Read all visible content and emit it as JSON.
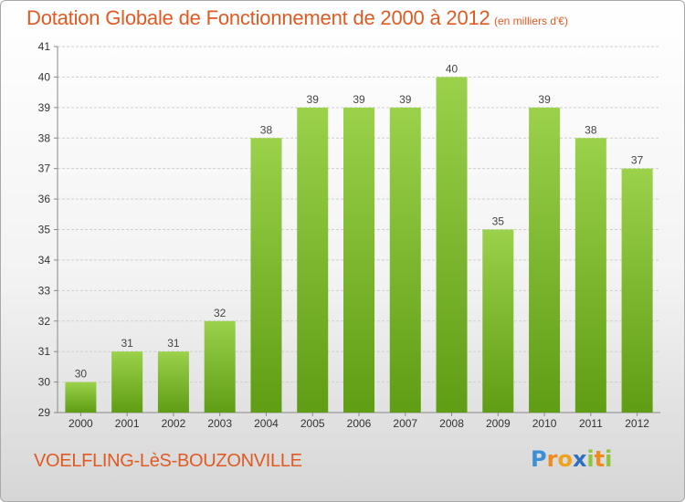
{
  "title": "Dotation Globale de Fonctionnement de 2000 à 2012",
  "unit_note": "(en milliers d'€)",
  "commune": "VOELFLING-LèS-BOUZONVILLE",
  "logo": {
    "p": "P",
    "r": "r",
    "o": "o",
    "x": "x",
    "i1": "i",
    "t": "t",
    "i2": "i"
  },
  "colors": {
    "title": "#e05a22",
    "bar_top": "#9bd14b",
    "bar_bottom": "#5f9d14",
    "grid": "#cfcfcf"
  },
  "chart_data": {
    "type": "bar",
    "categories": [
      "2000",
      "2001",
      "2002",
      "2003",
      "2004",
      "2005",
      "2006",
      "2007",
      "2008",
      "2009",
      "2010",
      "2011",
      "2012"
    ],
    "values": [
      30,
      31,
      31,
      32,
      38,
      39,
      39,
      39,
      40,
      35,
      39,
      38,
      37
    ],
    "ylim": [
      29,
      41
    ],
    "yticks": [
      29,
      30,
      31,
      32,
      33,
      34,
      35,
      36,
      37,
      38,
      39,
      40,
      41
    ],
    "grid": true,
    "data_labels": true
  }
}
